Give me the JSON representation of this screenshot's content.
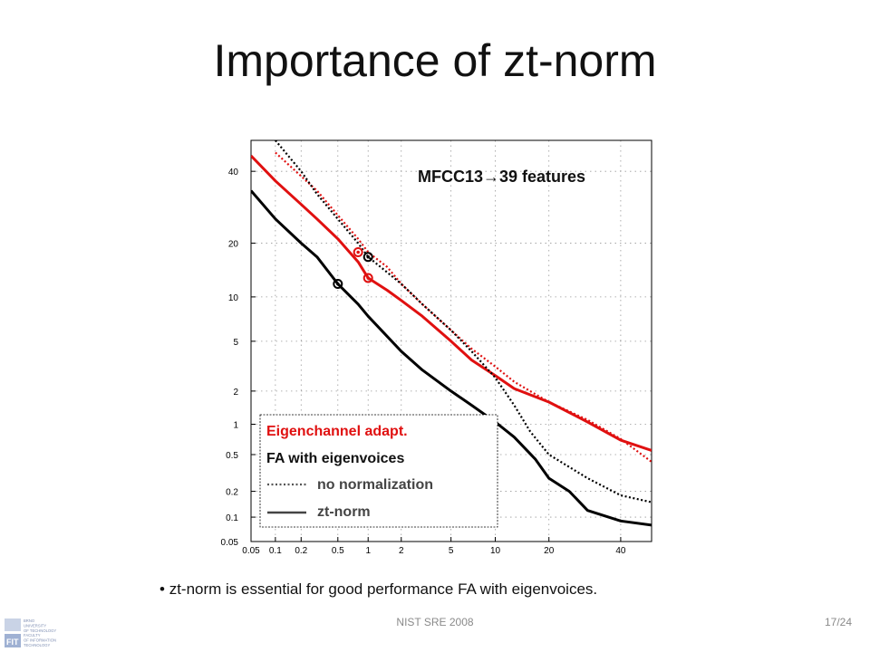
{
  "slide": {
    "title": "Importance of zt-norm",
    "bullet": "zt-norm is essential for good  performance FA with eigenvoices.",
    "footer": "NIST SRE 2008",
    "page": "17/24",
    "logo": {
      "icon": "fit-logo-icon",
      "lines": [
        "BRNO",
        "UNIVERSITY",
        "OF TECHNOLOGY",
        "FACULTY",
        "OF INFORMATION",
        "TECHNOLOGY"
      ]
    }
  },
  "chart_data": {
    "type": "line",
    "scale": "probit",
    "title": "MFCC13→39 features",
    "x_ticks": [
      "0.05",
      "0.1",
      "0.2",
      "0.5",
      "1",
      "2",
      "5",
      "10",
      "20",
      "40"
    ],
    "y_ticks": [
      "0.05",
      "0.1",
      "0.2",
      "0.5",
      "1",
      "2",
      "5",
      "10",
      "20",
      "40"
    ],
    "xlim": [
      0.05,
      50
    ],
    "ylim": [
      0.05,
      50
    ],
    "grid": true,
    "legend": {
      "placement": "bottom-left",
      "title1": "Eigenchannel adapt.",
      "title2": "FA with eigenvoices",
      "style_labels": [
        "no normalization",
        "zt-norm"
      ]
    },
    "colors": {
      "eigenchannel": "#e01010",
      "fa": "#000000"
    },
    "series": [
      {
        "system": "Eigenchannel adapt.",
        "normalization": "no normalization",
        "color": "#e01010",
        "style": "dotted",
        "x": [
          0.1,
          0.3,
          0.5,
          0.8,
          1,
          1.5,
          2,
          3,
          5,
          7,
          10,
          13,
          20,
          30,
          40,
          50
        ],
        "y": [
          46,
          34,
          27,
          21,
          18,
          15,
          12,
          9,
          6,
          4.4,
          3.2,
          2.4,
          1.6,
          1.1,
          0.72,
          0.42
        ]
      },
      {
        "system": "Eigenchannel adapt.",
        "normalization": "zt-norm",
        "color": "#e01010",
        "style": "solid",
        "x": [
          0.05,
          0.1,
          0.2,
          0.3,
          0.5,
          0.8,
          1,
          1.5,
          2,
          3,
          5,
          7,
          10,
          13,
          20,
          30,
          40,
          50
        ],
        "y": [
          45,
          37,
          30,
          26,
          21,
          16,
          13,
          11,
          9.5,
          7.5,
          5,
          3.6,
          2.7,
          2.1,
          1.6,
          1.05,
          0.7,
          0.55
        ]
      },
      {
        "system": "FA with eigenvoices",
        "normalization": "no normalization",
        "color": "#000000",
        "style": "dotted",
        "x": [
          0.1,
          0.2,
          0.3,
          0.5,
          0.8,
          1,
          1.5,
          2,
          3,
          5,
          7,
          10,
          13,
          16,
          20,
          30,
          40,
          50
        ],
        "y": [
          50,
          40,
          33,
          26,
          20,
          17,
          14,
          12,
          9,
          6,
          4.2,
          2.6,
          1.5,
          0.85,
          0.5,
          0.28,
          0.18,
          0.15
        ]
      },
      {
        "system": "FA with eigenvoices",
        "normalization": "zt-norm",
        "color": "#000000",
        "style": "solid",
        "x": [
          0.05,
          0.1,
          0.2,
          0.3,
          0.5,
          0.8,
          1,
          2,
          3,
          5,
          7,
          10,
          13,
          17,
          20,
          25,
          30,
          40,
          50
        ],
        "y": [
          34,
          26,
          20,
          17,
          12,
          9,
          7.5,
          4.2,
          3,
          2,
          1.5,
          1.05,
          0.75,
          0.45,
          0.28,
          0.2,
          0.12,
          0.09,
          0.08
        ]
      }
    ],
    "markers": [
      {
        "color": "#e01010",
        "x": 0.8,
        "y": 18
      },
      {
        "color": "#e01010",
        "x": 1.0,
        "y": 13
      },
      {
        "color": "#000000",
        "x": 1.0,
        "y": 17
      },
      {
        "color": "#000000",
        "x": 0.5,
        "y": 12
      }
    ]
  }
}
